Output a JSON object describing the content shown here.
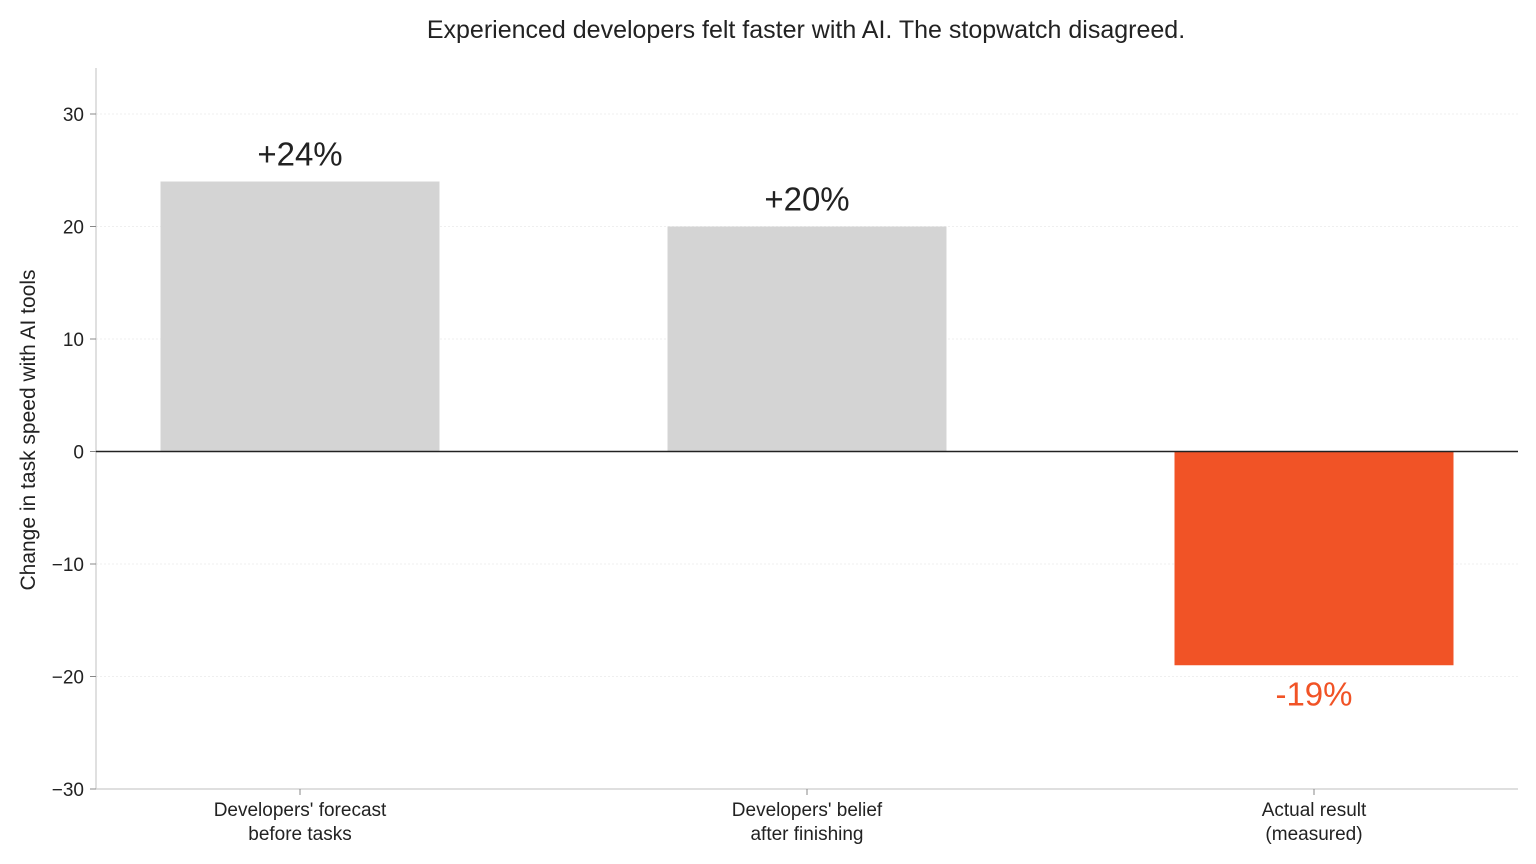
{
  "chart_data": {
    "type": "bar",
    "title": "Experienced developers felt faster with AI. The stopwatch disagreed.",
    "xlabel": "",
    "ylabel": "Change in task speed with AI tools",
    "categories": [
      [
        "Developers' forecast",
        "before tasks"
      ],
      [
        "Developers' belief",
        "after finishing"
      ],
      [
        "Actual result",
        "(measured)"
      ]
    ],
    "values": [
      24,
      20,
      -19
    ],
    "data_labels": [
      "+24%",
      "+20%",
      "-19%"
    ],
    "bar_colors": [
      "#d4d4d4",
      "#d4d4d4",
      "#f15326"
    ],
    "label_colors": [
      "#222222",
      "#222222",
      "#f15326"
    ],
    "ylim": [
      -30,
      30
    ],
    "yticks": [
      30,
      20,
      10,
      0,
      -10,
      -20,
      -30
    ],
    "ytick_labels": [
      "30",
      "20",
      "10",
      "0",
      "−10",
      "−20",
      "−30"
    ],
    "grid": true,
    "zero_line": true
  }
}
